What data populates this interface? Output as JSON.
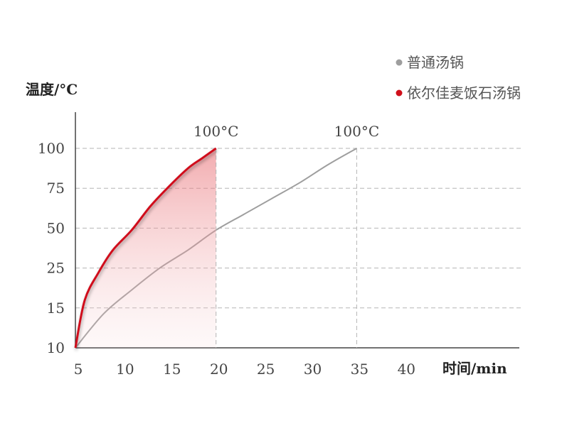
{
  "chart_data": {
    "type": "line",
    "ylabel": "温度/°C",
    "xlabel": "时间/min",
    "x_ticks": [
      "5",
      "10",
      "15",
      "20",
      "25",
      "30",
      "35",
      "40"
    ],
    "y_ticks": [
      "10",
      "15",
      "25",
      "50",
      "75",
      "100"
    ],
    "grid": true,
    "legend_position": "top-right",
    "peak_label": "100°C",
    "series": [
      {
        "name": "普通汤锅",
        "color": "#9e9e9e",
        "x": [
          5,
          8,
          11,
          14,
          17,
          20,
          23,
          26,
          29,
          32,
          35
        ],
        "y_rank": [
          0,
          0.85,
          1.45,
          2.0,
          2.45,
          2.95,
          3.35,
          3.75,
          4.15,
          4.6,
          5.0
        ]
      },
      {
        "name": "依尔佳麦饭石汤锅",
        "color": "#d0101b",
        "fill": true,
        "x": [
          5,
          6,
          7.5,
          9,
          11,
          13,
          15,
          17,
          18.5,
          20
        ],
        "y_rank": [
          0,
          1.2,
          1.9,
          2.45,
          2.95,
          3.55,
          4.05,
          4.5,
          4.75,
          5.0
        ]
      }
    ]
  }
}
